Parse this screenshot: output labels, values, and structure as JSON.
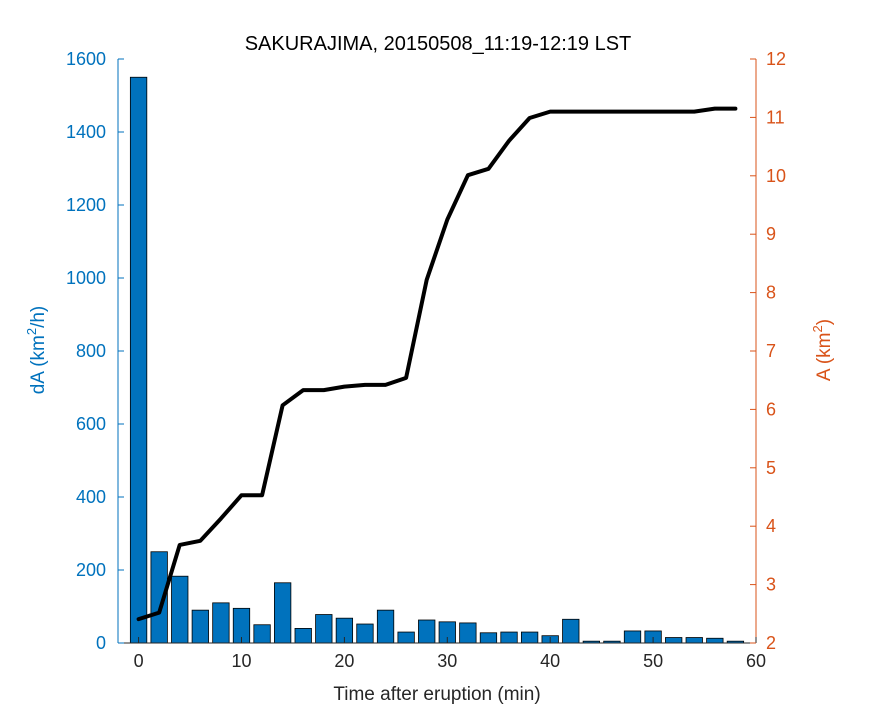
{
  "chart_data": {
    "type": "bar+line",
    "title": "SAKURAJIMA, 20150508_11:19-12:19 LST",
    "xlabel": "Time after eruption (min)",
    "ylabel_left": "dA (km²/h)",
    "ylabel_left_parts": {
      "base": "dA (km",
      "sup": "2",
      "tail": "/h)"
    },
    "ylabel_right": "A (km²)",
    "ylabel_right_parts": {
      "base": "A (km",
      "sup": "2",
      "tail": ")"
    },
    "xlim": [
      -2,
      60
    ],
    "ylim_left": [
      0,
      1600
    ],
    "ylim_right": [
      2,
      12
    ],
    "xticks": [
      0,
      10,
      20,
      30,
      40,
      50,
      60
    ],
    "yticks_left": [
      0,
      200,
      400,
      600,
      800,
      1000,
      1200,
      1400,
      1600
    ],
    "yticks_right": [
      2,
      3,
      4,
      5,
      6,
      7,
      8,
      9,
      10,
      11,
      12
    ],
    "colors": {
      "left_axis": "#0072BD",
      "right_axis": "#D95319",
      "bar_fill": "#0072BD",
      "line": "#000000"
    },
    "series": [
      {
        "kind": "bar",
        "axis": "left",
        "x": [
          0,
          2,
          4,
          6,
          8,
          10,
          12,
          14,
          16,
          18,
          20,
          22,
          24,
          26,
          28,
          30,
          32,
          34,
          36,
          38,
          40,
          42,
          44,
          46,
          48,
          50,
          52,
          54,
          56,
          58
        ],
        "values": [
          1550,
          250,
          183,
          90,
          110,
          95,
          50,
          165,
          40,
          78,
          68,
          52,
          90,
          30,
          63,
          58,
          55,
          28,
          30,
          30,
          20,
          65,
          5,
          5,
          33,
          33,
          15,
          15,
          13,
          5
        ]
      },
      {
        "kind": "line",
        "axis": "right",
        "x": [
          0,
          2,
          4,
          6,
          8,
          10,
          12,
          14,
          16,
          18,
          20,
          22,
          24,
          26,
          28,
          30,
          32,
          34,
          36,
          38,
          40,
          42,
          44,
          46,
          48,
          50,
          52,
          54,
          56,
          58
        ],
        "values": [
          2.41,
          2.52,
          3.68,
          3.75,
          4.13,
          4.53,
          4.53,
          6.07,
          6.33,
          6.33,
          6.39,
          6.42,
          6.42,
          6.54,
          8.22,
          9.25,
          10.01,
          10.12,
          10.6,
          10.99,
          11.1,
          11.1,
          11.1,
          11.1,
          11.1,
          11.1,
          11.1,
          11.1,
          11.15,
          11.15
        ]
      }
    ]
  }
}
